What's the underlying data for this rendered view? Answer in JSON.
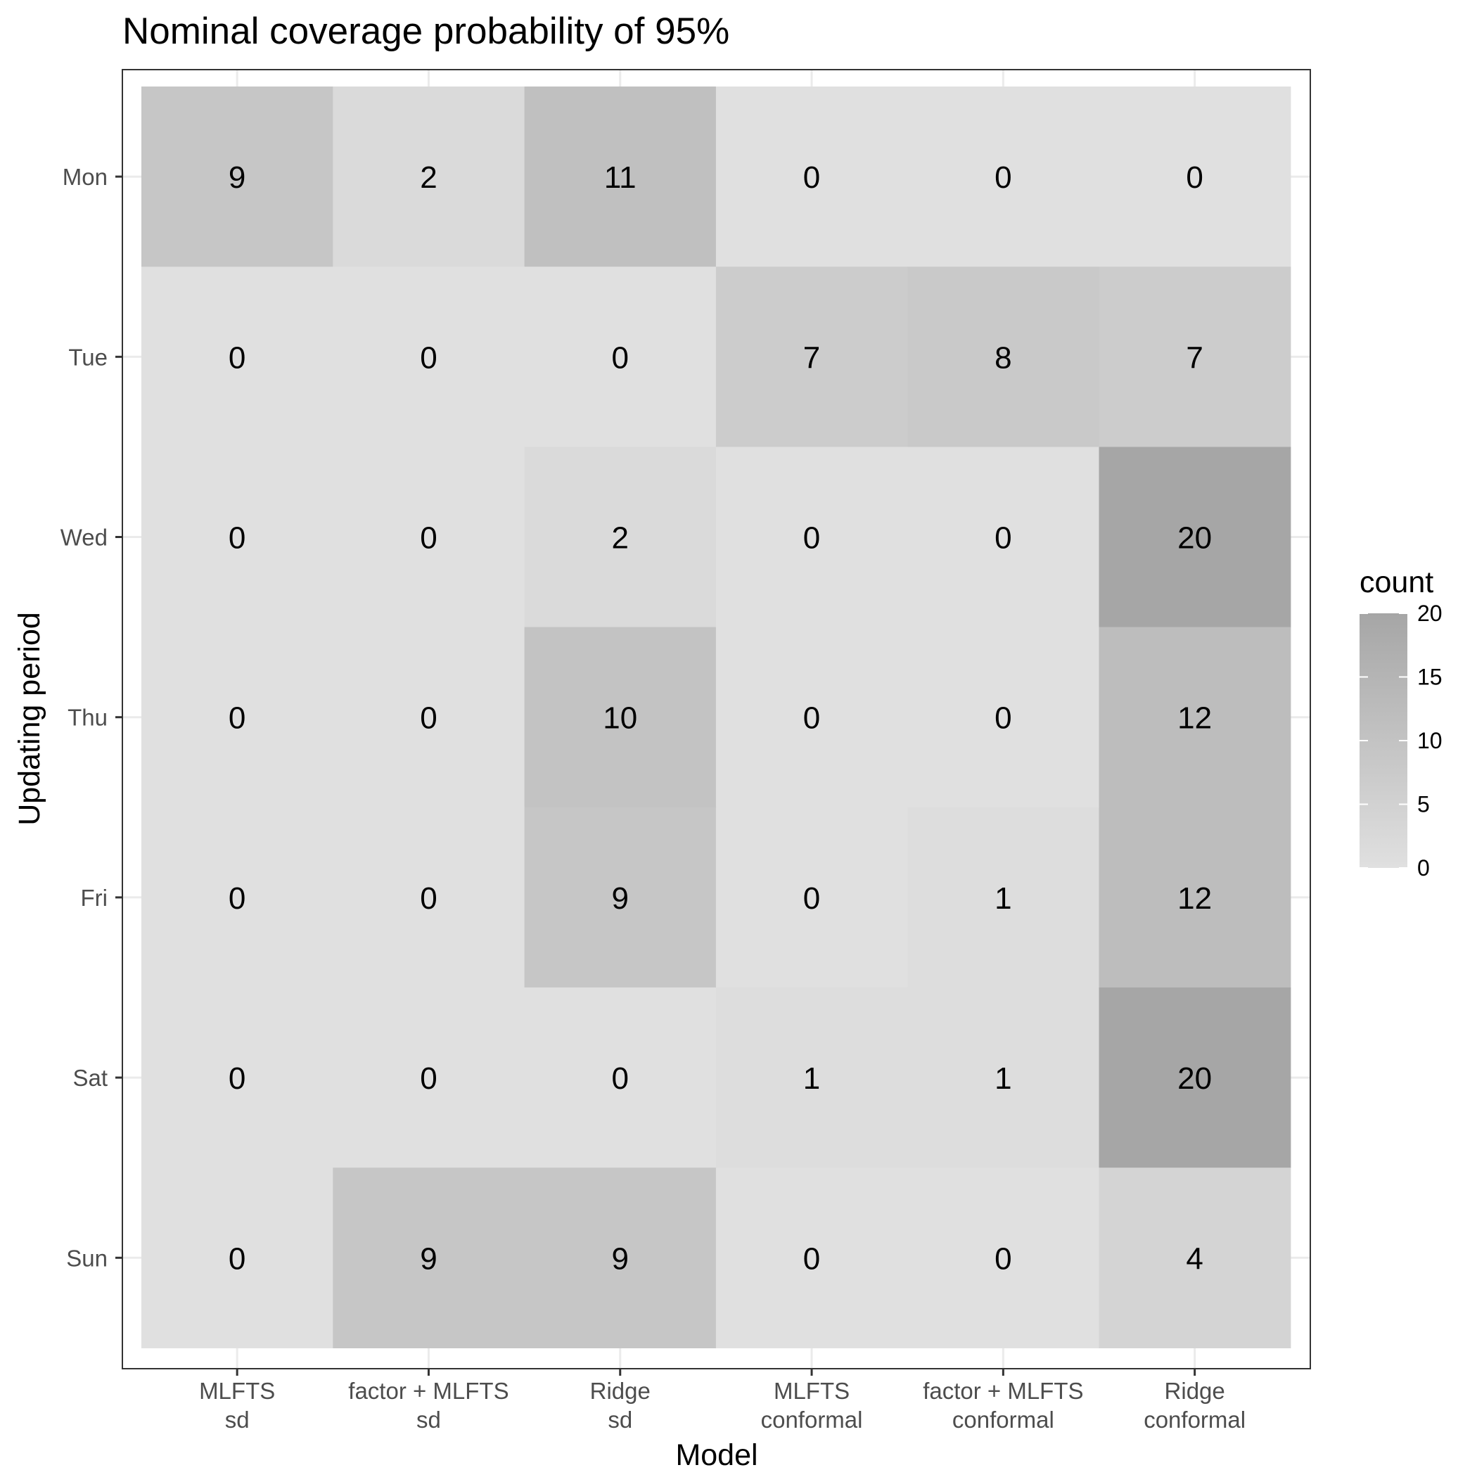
{
  "chart_data": {
    "type": "heatmap",
    "title": "Nominal coverage probability of 95%",
    "xlabel": "Model",
    "ylabel": "Updating period",
    "x_categories": [
      [
        "MLFTS",
        "sd"
      ],
      [
        "factor + MLFTS",
        "sd"
      ],
      [
        "Ridge",
        "sd"
      ],
      [
        "MLFTS",
        "conformal"
      ],
      [
        "factor + MLFTS",
        "conformal"
      ],
      [
        "Ridge",
        "conformal"
      ]
    ],
    "y_categories": [
      "Mon",
      "Tue",
      "Wed",
      "Thu",
      "Fri",
      "Sat",
      "Sun"
    ],
    "values": [
      [
        9,
        2,
        11,
        0,
        0,
        0
      ],
      [
        0,
        0,
        0,
        7,
        8,
        7
      ],
      [
        0,
        0,
        2,
        0,
        0,
        20
      ],
      [
        0,
        0,
        10,
        0,
        0,
        12
      ],
      [
        0,
        0,
        9,
        0,
        1,
        12
      ],
      [
        0,
        0,
        0,
        1,
        1,
        20
      ],
      [
        0,
        9,
        9,
        0,
        0,
        4
      ]
    ],
    "legend": {
      "title": "count",
      "ticks": [
        0,
        5,
        10,
        15,
        20
      ],
      "range": [
        0,
        20
      ],
      "placement": "right"
    },
    "color_low": "#e0e0e0",
    "color_high": "#a6a6a6",
    "grid": true
  }
}
